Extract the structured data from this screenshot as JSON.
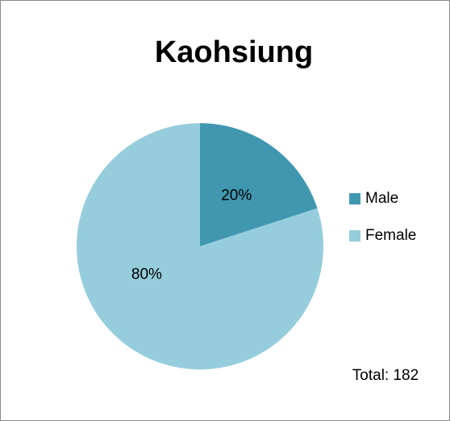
{
  "chart_data": {
    "type": "pie",
    "title": "Kaohsiung",
    "categories": [
      "Male",
      "Female"
    ],
    "values": [
      20,
      80
    ],
    "value_labels": [
      "20%",
      "80%"
    ],
    "colors": [
      "#4197b0",
      "#96cddc"
    ],
    "legend": "right",
    "annotation": "Total: 182"
  }
}
